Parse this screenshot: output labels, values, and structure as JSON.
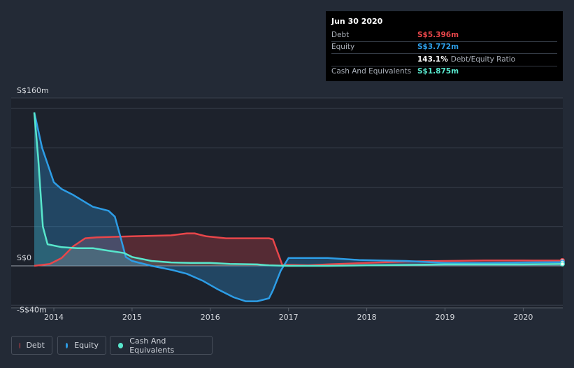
{
  "tooltip": {
    "date": "Jun 30 2020",
    "rows": [
      {
        "label": "Debt",
        "value": "S$5.396m",
        "color": "#e8464a"
      },
      {
        "label": "Equity",
        "value": "S$3.772m",
        "color": "#2d9de6"
      },
      {
        "label": "",
        "value": "143.1%",
        "suffix": "Debt/Equity Ratio",
        "color": "#ffffff"
      },
      {
        "label": "Cash And Equivalents",
        "value": "S$1.875m",
        "color": "#58e6cc"
      }
    ]
  },
  "legend": [
    {
      "label": "Debt",
      "color": "#e8464a"
    },
    {
      "label": "Equity",
      "color": "#2d9de6"
    },
    {
      "label": "Cash And Equivalents",
      "color": "#58e6cc"
    }
  ],
  "chart_data": {
    "type": "area",
    "ylim": [
      -40,
      160
    ],
    "y_tick_labels": [
      "S$160m",
      "S$0",
      "-S$40m"
    ],
    "x_tick_labels": [
      "2014",
      "2015",
      "2016",
      "2017",
      "2018",
      "2019",
      "2020"
    ],
    "grid": true,
    "legend_position": "bottom-left",
    "series": [
      {
        "name": "Debt",
        "color": "#e8464a",
        "points": [
          [
            2013.75,
            0
          ],
          [
            2013.95,
            2
          ],
          [
            2014.1,
            8
          ],
          [
            2014.25,
            20
          ],
          [
            2014.4,
            28
          ],
          [
            2014.55,
            29
          ],
          [
            2015.0,
            30
          ],
          [
            2015.5,
            31
          ],
          [
            2015.7,
            33
          ],
          [
            2015.8,
            33
          ],
          [
            2015.95,
            30
          ],
          [
            2016.2,
            28
          ],
          [
            2016.5,
            28
          ],
          [
            2016.75,
            28
          ],
          [
            2016.8,
            27
          ],
          [
            2016.92,
            1
          ],
          [
            2017.0,
            1
          ],
          [
            2017.25,
            0.5
          ],
          [
            2017.5,
            1.5
          ],
          [
            2018.0,
            3
          ],
          [
            2018.5,
            4.5
          ],
          [
            2019.0,
            5
          ],
          [
            2019.5,
            5.5
          ],
          [
            2020.0,
            5.5
          ],
          [
            2020.5,
            5.4
          ]
        ]
      },
      {
        "name": "Equity",
        "color": "#2d9de6",
        "points": [
          [
            2013.75,
            156
          ],
          [
            2013.85,
            120
          ],
          [
            2014.0,
            85
          ],
          [
            2014.1,
            78
          ],
          [
            2014.25,
            72
          ],
          [
            2014.5,
            60
          ],
          [
            2014.7,
            56
          ],
          [
            2014.78,
            50
          ],
          [
            2014.85,
            30
          ],
          [
            2014.92,
            9
          ],
          [
            2015.0,
            5
          ],
          [
            2015.25,
            0
          ],
          [
            2015.5,
            -4
          ],
          [
            2015.7,
            -8
          ],
          [
            2015.9,
            -15
          ],
          [
            2016.1,
            -24
          ],
          [
            2016.3,
            -32
          ],
          [
            2016.45,
            -36
          ],
          [
            2016.6,
            -36
          ],
          [
            2016.75,
            -33
          ],
          [
            2016.8,
            -25
          ],
          [
            2016.9,
            -5
          ],
          [
            2017.0,
            8
          ],
          [
            2017.5,
            8
          ],
          [
            2017.9,
            6
          ],
          [
            2018.5,
            5
          ],
          [
            2019.0,
            3
          ],
          [
            2019.5,
            3
          ],
          [
            2020.0,
            3.5
          ],
          [
            2020.5,
            3.8
          ]
        ]
      },
      {
        "name": "Cash And Equivalents",
        "color": "#58e6cc",
        "points": [
          [
            2013.75,
            156
          ],
          [
            2013.8,
            110
          ],
          [
            2013.86,
            40
          ],
          [
            2013.92,
            22
          ],
          [
            2014.1,
            19
          ],
          [
            2014.3,
            18
          ],
          [
            2014.5,
            18
          ],
          [
            2014.65,
            16
          ],
          [
            2014.9,
            13
          ],
          [
            2015.0,
            9
          ],
          [
            2015.25,
            5
          ],
          [
            2015.5,
            3.5
          ],
          [
            2015.75,
            3
          ],
          [
            2016.0,
            3
          ],
          [
            2016.25,
            2
          ],
          [
            2016.6,
            1.5
          ],
          [
            2016.75,
            0.5
          ],
          [
            2017.0,
            0
          ],
          [
            2017.5,
            0
          ],
          [
            2018.0,
            0.5
          ],
          [
            2018.5,
            1
          ],
          [
            2019.0,
            1.5
          ],
          [
            2019.5,
            1.5
          ],
          [
            2020.0,
            1.5
          ],
          [
            2020.5,
            1.9
          ]
        ]
      }
    ]
  }
}
